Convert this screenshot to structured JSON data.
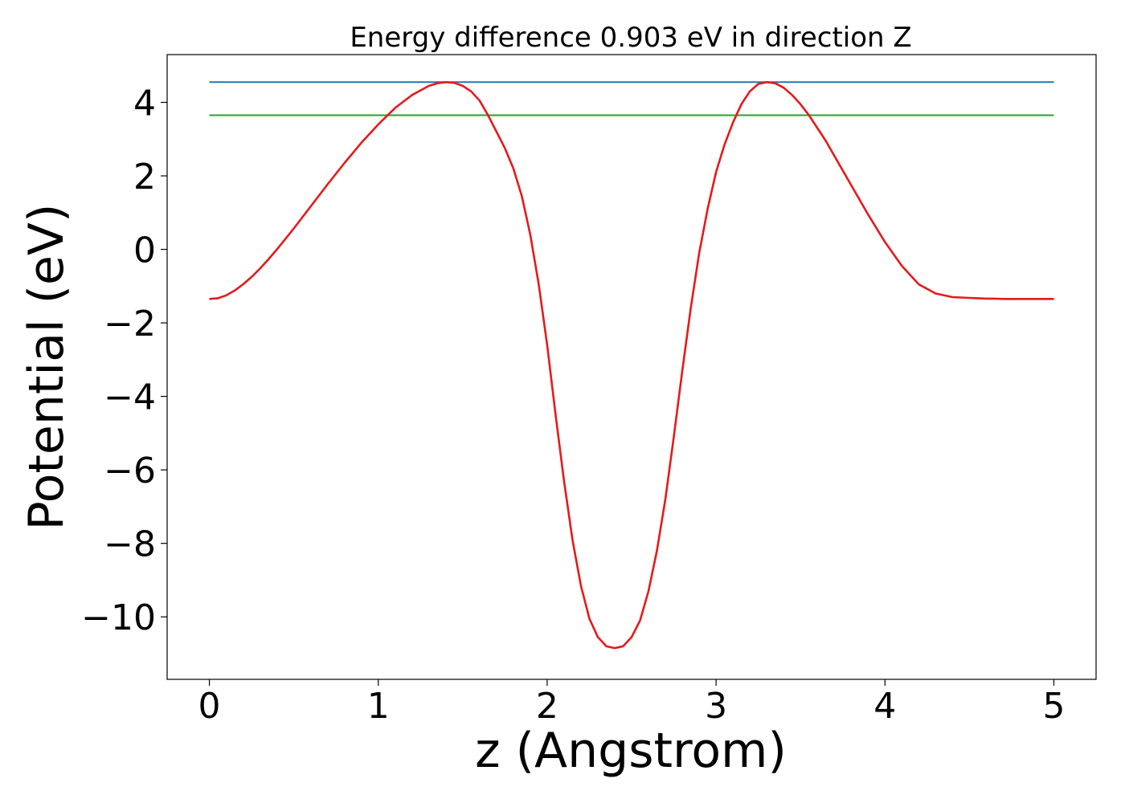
{
  "chart_data": {
    "type": "line",
    "title": "Energy difference 0.903 eV in direction Z",
    "xlabel": "z (Angstrom)",
    "ylabel": "Potential (eV)",
    "xlim": [
      -0.25,
      5.25
    ],
    "ylim": [
      -11.7,
      5.3
    ],
    "xticks": [
      0,
      1,
      2,
      3,
      4,
      5
    ],
    "xtick_labels": [
      "0",
      "1",
      "2",
      "3",
      "4",
      "5"
    ],
    "yticks": [
      4,
      2,
      0,
      -2,
      -4,
      -6,
      -8,
      -10
    ],
    "ytick_labels": [
      "4",
      "2",
      "0",
      "−2",
      "−4",
      "−6",
      "−8",
      "−10"
    ],
    "grid": false,
    "series": [
      {
        "color": "#1f77b4",
        "x": [
          0,
          5
        ],
        "y": [
          4.55,
          4.55
        ]
      },
      {
        "color": "#2ca02c",
        "x": [
          0,
          5
        ],
        "y": [
          3.65,
          3.65
        ]
      },
      {
        "color": "#e41a1c",
        "x": [
          0,
          0.05,
          0.1,
          0.15,
          0.2,
          0.25,
          0.3,
          0.35,
          0.4,
          0.45,
          0.5,
          0.6,
          0.7,
          0.8,
          0.9,
          1.0,
          1.1,
          1.2,
          1.3,
          1.35,
          1.4,
          1.45,
          1.5,
          1.55,
          1.6,
          1.65,
          1.7,
          1.75,
          1.8,
          1.85,
          1.9,
          1.95,
          2.0,
          2.05,
          2.1,
          2.15,
          2.2,
          2.25,
          2.3,
          2.35,
          2.4,
          2.45,
          2.5,
          2.55,
          2.6,
          2.65,
          2.7,
          2.75,
          2.8,
          2.85,
          2.9,
          2.95,
          3.0,
          3.05,
          3.1,
          3.15,
          3.2,
          3.25,
          3.3,
          3.35,
          3.4,
          3.45,
          3.5,
          3.55,
          3.6,
          3.65,
          3.7,
          3.75,
          3.8,
          3.9,
          4.0,
          4.1,
          4.2,
          4.3,
          4.4,
          4.5,
          4.55,
          4.6,
          4.65,
          4.7,
          4.75,
          4.8,
          4.85,
          4.9,
          4.95,
          5.0
        ],
        "y": [
          -1.35,
          -1.33,
          -1.25,
          -1.12,
          -0.95,
          -0.75,
          -0.52,
          -0.27,
          0.0,
          0.28,
          0.57,
          1.17,
          1.77,
          2.35,
          2.9,
          3.4,
          3.85,
          4.2,
          4.45,
          4.52,
          4.55,
          4.53,
          4.45,
          4.3,
          4.05,
          3.65,
          3.2,
          2.75,
          2.2,
          1.45,
          0.4,
          -0.95,
          -2.6,
          -4.5,
          -6.3,
          -7.9,
          -9.15,
          -10.05,
          -10.55,
          -10.8,
          -10.85,
          -10.8,
          -10.55,
          -10.1,
          -9.3,
          -8.2,
          -6.8,
          -5.1,
          -3.3,
          -1.6,
          -0.1,
          1.1,
          2.1,
          2.85,
          3.45,
          3.95,
          4.3,
          4.5,
          4.55,
          4.52,
          4.4,
          4.2,
          3.95,
          3.65,
          3.3,
          2.95,
          2.55,
          2.15,
          1.75,
          0.95,
          0.2,
          -0.45,
          -0.95,
          -1.2,
          -1.3,
          -1.32,
          -1.33,
          -1.34,
          -1.34,
          -1.35,
          -1.35,
          -1.35,
          -1.35,
          -1.35,
          -1.35,
          -1.35
        ]
      }
    ]
  }
}
